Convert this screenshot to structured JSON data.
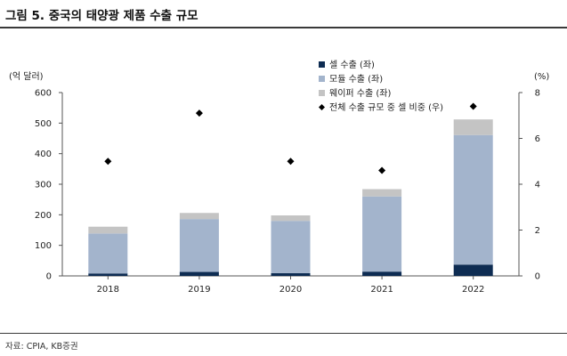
{
  "figure": {
    "title": "그림 5. 중국의 태양광 제품 수출 규모",
    "source": "자료: CPIA, KB증권"
  },
  "colors": {
    "cell": "#0e2c52",
    "module": "#a3b4cc",
    "wafer": "#c4c4c4",
    "share": "#000000"
  },
  "chart_data": {
    "type": "bar",
    "stacked": true,
    "categories": [
      "2018",
      "2019",
      "2020",
      "2021",
      "2022"
    ],
    "y_left_label": "(억 달러)",
    "y_right_label": "(%)",
    "ylim_left": [
      0,
      600
    ],
    "yticks_left": [
      "0",
      "100",
      "200",
      "300",
      "400",
      "500",
      "600"
    ],
    "ylim_right": [
      0,
      8
    ],
    "yticks_right": [
      "0",
      "2",
      "4",
      "6",
      "8"
    ],
    "grid": false,
    "legend_position": "top-right",
    "series": [
      {
        "name": "셀 수출 (좌)",
        "axis": "left",
        "kind": "bar",
        "values": [
          8,
          13,
          9,
          14,
          37
        ]
      },
      {
        "name": "모듈 수출 (좌)",
        "axis": "left",
        "kind": "bar",
        "values": [
          131,
          173,
          171,
          246,
          424
        ]
      },
      {
        "name": "웨이퍼 수출 (좌)",
        "axis": "left",
        "kind": "bar",
        "values": [
          22,
          20,
          18,
          24,
          51
        ]
      },
      {
        "name": "전체 수출 규모 중 셀 비중 (우)",
        "axis": "right",
        "kind": "scatter",
        "marker": "diamond",
        "values": [
          5.0,
          7.1,
          5.0,
          4.6,
          7.4
        ]
      }
    ]
  }
}
